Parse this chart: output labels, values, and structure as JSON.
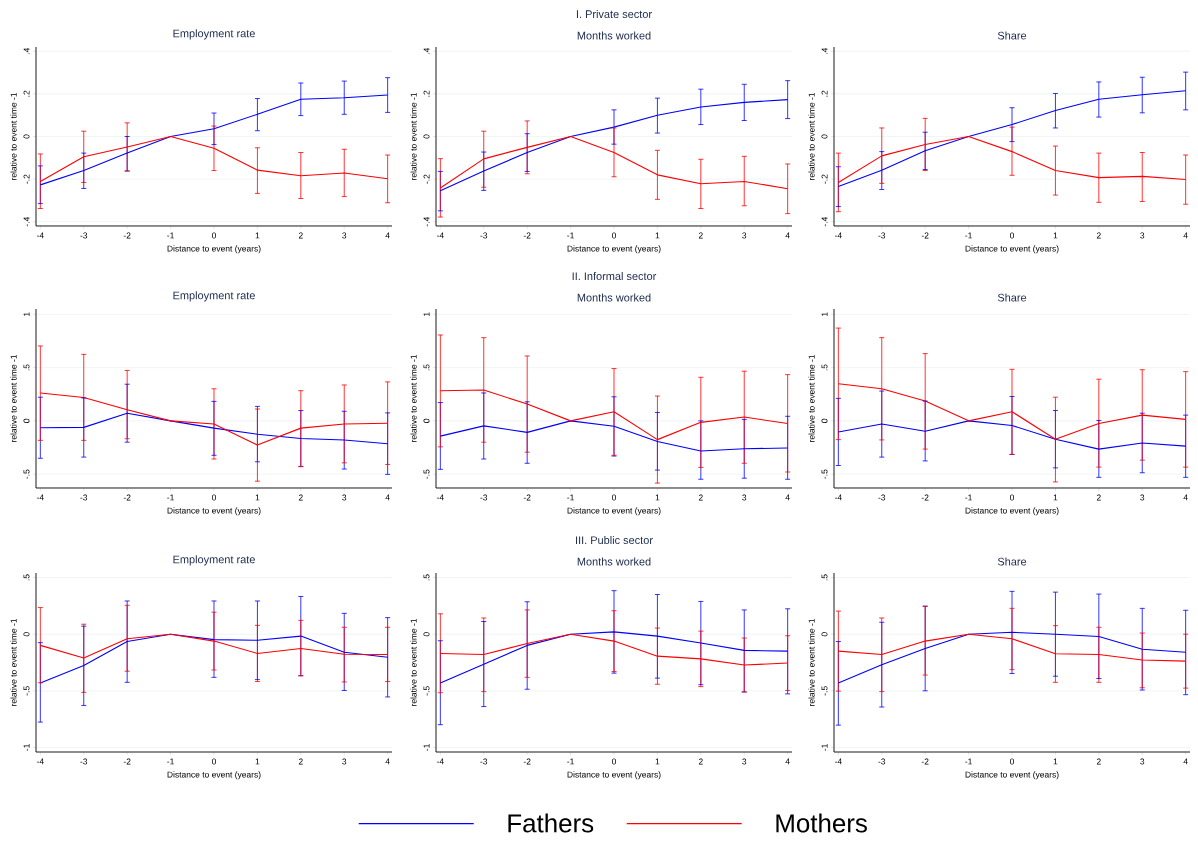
{
  "chart_data": [
    {
      "type": "line",
      "title": "Employment rate",
      "xlabel": "Distance to event (years)",
      "ylabel": "relative to event time -1",
      "x": [
        -4,
        -3,
        -2,
        -1,
        0,
        1,
        2,
        3,
        4
      ],
      "xlim": [
        -4.1,
        4.1
      ],
      "xticks": [
        -4,
        -3,
        -2,
        -1,
        0,
        1,
        2,
        3,
        4
      ],
      "ylim": [
        -0.42,
        0.42
      ],
      "yticks": [
        {
          "value": -0.4,
          "label": "-.4"
        },
        {
          "value": -0.2,
          "label": "-.2"
        },
        {
          "value": 0,
          "label": "0"
        },
        {
          "value": 0.2,
          "label": ".2"
        },
        {
          "value": 0.4,
          "label": ".4"
        }
      ],
      "grid": "y",
      "series": [
        {
          "color": "#0000ff",
          "values": [
            -0.227,
            -0.16,
            -0.078,
            0,
            0.036,
            0.104,
            0.175,
            0.182,
            0.195
          ],
          "errors": [
            [
              -0.315,
              -0.138
            ],
            [
              -0.244,
              -0.078
            ],
            [
              -0.162,
              0
            ],
            null,
            [
              -0.038,
              0.11
            ],
            [
              0.027,
              0.178
            ],
            [
              0.098,
              0.251
            ],
            [
              0.104,
              0.26
            ],
            [
              0.113,
              0.276
            ]
          ]
        },
        {
          "color": "#ff0000",
          "values": [
            -0.211,
            -0.095,
            -0.049,
            0,
            -0.055,
            -0.158,
            -0.184,
            -0.171,
            -0.198
          ],
          "errors": [
            [
              -0.338,
              -0.082
            ],
            [
              -0.216,
              0.025
            ],
            [
              -0.162,
              0.064
            ],
            null,
            [
              -0.16,
              0.049
            ],
            [
              -0.267,
              -0.053
            ],
            [
              -0.291,
              -0.075
            ],
            [
              -0.282,
              -0.06
            ],
            [
              -0.311,
              -0.087
            ]
          ]
        }
      ]
    },
    {
      "type": "line",
      "title": "Months worked",
      "annotations": [
        "I. Private sector"
      ],
      "xlabel": "Distance to event (years)",
      "ylabel": "relative to event time -1",
      "x": [
        -4,
        -3,
        -2,
        -1,
        0,
        1,
        2,
        3,
        4
      ],
      "xlim": [
        -4.1,
        4.1
      ],
      "xticks": [
        -4,
        -3,
        -2,
        -1,
        0,
        1,
        2,
        3,
        4
      ],
      "ylim": [
        -0.42,
        0.42
      ],
      "yticks": [
        {
          "value": -0.4,
          "label": "-.4"
        },
        {
          "value": -0.2,
          "label": "-.2"
        },
        {
          "value": 0,
          "label": "0"
        },
        {
          "value": 0.2,
          "label": ".2"
        },
        {
          "value": 0.4,
          "label": ".4"
        }
      ],
      "grid": "y",
      "series": [
        {
          "color": "#0000ff",
          "values": [
            -0.255,
            -0.162,
            -0.075,
            0,
            0.044,
            0.1,
            0.138,
            0.16,
            0.173
          ],
          "errors": [
            [
              -0.349,
              -0.164
            ],
            [
              -0.253,
              -0.073
            ],
            [
              -0.164,
              0.013
            ],
            null,
            [
              -0.036,
              0.125
            ],
            [
              0.016,
              0.18
            ],
            [
              0.056,
              0.222
            ],
            [
              0.075,
              0.245
            ],
            [
              0.084,
              0.262
            ]
          ]
        },
        {
          "color": "#ff0000",
          "values": [
            -0.242,
            -0.105,
            -0.051,
            0,
            -0.075,
            -0.18,
            -0.222,
            -0.211,
            -0.245
          ],
          "errors": [
            [
              -0.378,
              -0.104
            ],
            [
              -0.238,
              0.025
            ],
            [
              -0.175,
              0.073
            ],
            null,
            [
              -0.189,
              0.04
            ],
            [
              -0.295,
              -0.065
            ],
            [
              -0.338,
              -0.107
            ],
            [
              -0.325,
              -0.093
            ],
            [
              -0.362,
              -0.129
            ]
          ]
        }
      ]
    },
    {
      "type": "line",
      "title": "Share",
      "xlabel": "Distance to event (years)",
      "ylabel": "relative to event time -1",
      "x": [
        -4,
        -3,
        -2,
        -1,
        0,
        1,
        2,
        3,
        4
      ],
      "xlim": [
        -4.1,
        4.1
      ],
      "xticks": [
        -4,
        -3,
        -2,
        -1,
        0,
        1,
        2,
        3,
        4
      ],
      "ylim": [
        -0.42,
        0.42
      ],
      "yticks": [
        {
          "value": -0.4,
          "label": "-.4"
        },
        {
          "value": -0.2,
          "label": "-.2"
        },
        {
          "value": 0,
          "label": "0"
        },
        {
          "value": 0.2,
          "label": ".2"
        },
        {
          "value": 0.4,
          "label": ".4"
        }
      ],
      "grid": "y",
      "series": [
        {
          "color": "#0000ff",
          "values": [
            -0.235,
            -0.158,
            -0.067,
            0,
            0.056,
            0.122,
            0.175,
            0.196,
            0.215
          ],
          "errors": [
            [
              -0.329,
              -0.142
            ],
            [
              -0.249,
              -0.071
            ],
            [
              -0.155,
              0.02
            ],
            null,
            [
              -0.024,
              0.135
            ],
            [
              0.04,
              0.202
            ],
            [
              0.091,
              0.256
            ],
            [
              0.111,
              0.278
            ],
            [
              0.125,
              0.302
            ]
          ]
        },
        {
          "color": "#ff0000",
          "values": [
            -0.216,
            -0.091,
            -0.038,
            0,
            -0.071,
            -0.16,
            -0.193,
            -0.187,
            -0.202
          ],
          "errors": [
            [
              -0.353,
              -0.078
            ],
            [
              -0.22,
              0.04
            ],
            [
              -0.16,
              0.085
            ],
            null,
            [
              -0.182,
              0.044
            ],
            [
              -0.275,
              -0.045
            ],
            [
              -0.309,
              -0.078
            ],
            [
              -0.305,
              -0.075
            ],
            [
              -0.318,
              -0.087
            ]
          ]
        }
      ]
    },
    {
      "type": "line",
      "title": "Employment rate",
      "xlabel": "Distance to event (years)",
      "ylabel": "relative to event time -1",
      "x": [
        -4,
        -3,
        -2,
        -1,
        0,
        1,
        2,
        3,
        4
      ],
      "xlim": [
        -4.1,
        4.1
      ],
      "xticks": [
        -4,
        -3,
        -2,
        -1,
        0,
        1,
        2,
        3,
        4
      ],
      "ylim": [
        -0.63,
        1.05
      ],
      "yticks": [
        {
          "value": -0.5,
          "label": "-.5"
        },
        {
          "value": 0,
          "label": "0"
        },
        {
          "value": 0.5,
          "label": ".5"
        },
        {
          "value": 1,
          "label": "1"
        }
      ],
      "grid": "y",
      "series": [
        {
          "color": "#0000ff",
          "values": [
            -0.065,
            -0.061,
            0.072,
            0,
            -0.068,
            -0.125,
            -0.165,
            -0.179,
            -0.215
          ],
          "errors": [
            [
              -0.351,
              0.222
            ],
            [
              -0.34,
              0.215
            ],
            [
              -0.2,
              0.344
            ],
            null,
            [
              -0.323,
              0.183
            ],
            [
              -0.384,
              0.136
            ],
            [
              -0.43,
              0.097
            ],
            [
              -0.452,
              0.09
            ],
            [
              -0.502,
              0.075
            ]
          ]
        },
        {
          "color": "#ff0000",
          "values": [
            0.262,
            0.219,
            0.104,
            0,
            -0.029,
            -0.226,
            -0.068,
            -0.029,
            -0.022
          ],
          "errors": [
            [
              -0.183,
              0.703
            ],
            [
              -0.183,
              0.624
            ],
            [
              -0.168,
              0.473
            ],
            null,
            [
              -0.358,
              0.301
            ],
            [
              -0.566,
              0.111
            ],
            [
              -0.427,
              0.283
            ],
            [
              -0.394,
              0.337
            ],
            [
              -0.409,
              0.366
            ]
          ]
        }
      ]
    },
    {
      "type": "line",
      "title": "Months worked",
      "annotations": [
        "II. Informal sector"
      ],
      "xlabel": "Distance to event (years)",
      "ylabel": "relative to event time -1",
      "x": [
        -4,
        -3,
        -2,
        -1,
        0,
        1,
        2,
        3,
        4
      ],
      "xlim": [
        -4.1,
        4.1
      ],
      "xticks": [
        -4,
        -3,
        -2,
        -1,
        0,
        1,
        2,
        3,
        4
      ],
      "ylim": [
        -0.63,
        1.05
      ],
      "yticks": [
        {
          "value": -0.5,
          "label": "-.5"
        },
        {
          "value": 0,
          "label": "0"
        },
        {
          "value": 0.5,
          "label": ".5"
        },
        {
          "value": 1,
          "label": "1"
        }
      ],
      "grid": "y",
      "series": [
        {
          "color": "#0000ff",
          "values": [
            -0.143,
            -0.047,
            -0.108,
            0,
            -0.05,
            -0.194,
            -0.283,
            -0.262,
            -0.254
          ],
          "errors": [
            [
              -0.455,
              0.172
            ],
            [
              -0.358,
              0.262
            ],
            [
              -0.398,
              0.179
            ],
            null,
            [
              -0.33,
              0.226
            ],
            [
              -0.462,
              0.079
            ],
            [
              -0.548,
              0.0
            ],
            [
              -0.538,
              0.014
            ],
            [
              -0.548,
              0.043
            ]
          ]
        },
        {
          "color": "#ff0000",
          "values": [
            0.283,
            0.29,
            0.158,
            0,
            0.086,
            -0.176,
            -0.014,
            0.036,
            -0.025
          ],
          "errors": [
            [
              -0.244,
              0.806
            ],
            [
              -0.2,
              0.781
            ],
            [
              -0.294,
              0.609
            ],
            null,
            [
              -0.323,
              0.491
            ],
            [
              -0.584,
              0.233
            ],
            [
              -0.437,
              0.409
            ],
            [
              -0.398,
              0.466
            ],
            [
              -0.48,
              0.434
            ]
          ]
        }
      ]
    },
    {
      "type": "line",
      "title": "Share",
      "xlabel": "Distance to event (years)",
      "ylabel": "relative to event time -1",
      "x": [
        -4,
        -3,
        -2,
        -1,
        0,
        1,
        2,
        3,
        4
      ],
      "xlim": [
        -4.1,
        4.1
      ],
      "xticks": [
        -4,
        -3,
        -2,
        -1,
        0,
        1,
        2,
        3,
        4
      ],
      "ylim": [
        -0.63,
        1.05
      ],
      "yticks": [
        {
          "value": -0.5,
          "label": "-.5"
        },
        {
          "value": 0,
          "label": "0"
        },
        {
          "value": 0.5,
          "label": ".5"
        },
        {
          "value": 1,
          "label": "1"
        }
      ],
      "grid": "y",
      "series": [
        {
          "color": "#0000ff",
          "values": [
            -0.104,
            -0.029,
            -0.097,
            0,
            -0.043,
            -0.172,
            -0.265,
            -0.208,
            -0.237
          ],
          "errors": [
            [
              -0.419,
              0.211
            ],
            [
              -0.34,
              0.28
            ],
            [
              -0.376,
              0.186
            ],
            null,
            [
              -0.315,
              0.229
            ],
            [
              -0.441,
              0.097
            ],
            [
              -0.53,
              0.004
            ],
            [
              -0.487,
              0.072
            ],
            [
              -0.53,
              0.054
            ]
          ]
        },
        {
          "color": "#ff0000",
          "values": [
            0.348,
            0.301,
            0.186,
            0,
            0.086,
            -0.172,
            -0.025,
            0.054,
            0.014
          ],
          "errors": [
            [
              -0.176,
              0.871
            ],
            [
              -0.179,
              0.781
            ],
            [
              -0.265,
              0.631
            ],
            null,
            [
              -0.315,
              0.484
            ],
            [
              -0.573,
              0.222
            ],
            [
              -0.434,
              0.391
            ],
            [
              -0.369,
              0.48
            ],
            [
              -0.434,
              0.462
            ]
          ]
        }
      ]
    },
    {
      "type": "line",
      "title": "Employment rate",
      "xlabel": "Distance to event (years)",
      "ylabel": "relative to event time -1",
      "x": [
        -4,
        -3,
        -2,
        -1,
        0,
        1,
        2,
        3,
        4
      ],
      "xlim": [
        -4.1,
        4.1
      ],
      "xticks": [
        -4,
        -3,
        -2,
        -1,
        0,
        1,
        2,
        3,
        4
      ],
      "ylim": [
        -1.04,
        0.54
      ],
      "yticks": [
        {
          "value": -1,
          "label": "-1"
        },
        {
          "value": -0.5,
          "label": "-.5"
        },
        {
          "value": 0,
          "label": "0"
        },
        {
          "value": 0.5,
          "label": ".5"
        }
      ],
      "grid": "y",
      "series": [
        {
          "color": "#0000ff",
          "values": [
            -0.432,
            -0.276,
            -0.065,
            0,
            -0.048,
            -0.054,
            -0.017,
            -0.16,
            -0.204
          ],
          "errors": [
            [
              -0.776,
              -0.075
            ],
            [
              -0.629,
              0.071
            ],
            [
              -0.425,
              0.293
            ],
            null,
            [
              -0.381,
              0.293
            ],
            [
              -0.401,
              0.293
            ],
            [
              -0.367,
              0.333
            ],
            [
              -0.497,
              0.184
            ],
            [
              -0.554,
              0.146
            ]
          ]
        },
        {
          "color": "#ff0000",
          "values": [
            -0.099,
            -0.211,
            -0.041,
            0,
            -0.061,
            -0.17,
            -0.126,
            -0.177,
            -0.18
          ],
          "errors": [
            [
              -0.429,
              0.235
            ],
            [
              -0.514,
              0.088
            ],
            [
              -0.327,
              0.255
            ],
            null,
            [
              -0.316,
              0.194
            ],
            [
              -0.418,
              0.078
            ],
            [
              -0.367,
              0.122
            ],
            [
              -0.422,
              0.061
            ],
            [
              -0.418,
              0.061
            ]
          ]
        }
      ]
    },
    {
      "type": "line",
      "title": "Months worked",
      "annotations": [
        "III. Public sector"
      ],
      "legend": "bottom",
      "xlabel": "Distance to event (years)",
      "ylabel": "relative to event time -1",
      "x": [
        -4,
        -3,
        -2,
        -1,
        0,
        1,
        2,
        3,
        4
      ],
      "xlim": [
        -4.1,
        4.1
      ],
      "xticks": [
        -4,
        -3,
        -2,
        -1,
        0,
        1,
        2,
        3,
        4
      ],
      "ylim": [
        -1.04,
        0.54
      ],
      "yticks": [
        {
          "value": -1,
          "label": "-1"
        },
        {
          "value": -0.5,
          "label": "-.5"
        },
        {
          "value": 0,
          "label": "0"
        },
        {
          "value": 0.5,
          "label": ".5"
        }
      ],
      "grid": "y",
      "series": [
        {
          "name": "Fathers",
          "color": "#0000ff",
          "values": [
            -0.432,
            -0.265,
            -0.099,
            0,
            0.02,
            -0.017,
            -0.078,
            -0.143,
            -0.15
          ],
          "errors": [
            [
              -0.799,
              -0.058
            ],
            [
              -0.639,
              0.112
            ],
            [
              -0.486,
              0.286
            ],
            null,
            [
              -0.344,
              0.384
            ],
            [
              -0.388,
              0.35
            ],
            [
              -0.446,
              0.289
            ],
            [
              -0.51,
              0.214
            ],
            [
              -0.527,
              0.224
            ]
          ]
        },
        {
          "name": "Mothers",
          "color": "#ff0000",
          "values": [
            -0.17,
            -0.18,
            -0.082,
            0,
            -0.061,
            -0.194,
            -0.218,
            -0.272,
            -0.255
          ],
          "errors": [
            [
              -0.517,
              0.18
            ],
            [
              -0.507,
              0.143
            ],
            [
              -0.381,
              0.214
            ],
            null,
            [
              -0.33,
              0.207
            ],
            [
              -0.442,
              0.054
            ],
            [
              -0.463,
              0.027
            ],
            [
              -0.51,
              -0.034
            ],
            [
              -0.497,
              -0.014
            ]
          ]
        }
      ]
    },
    {
      "type": "line",
      "title": "Share",
      "xlabel": "Distance to event (years)",
      "ylabel": "relative to event time -1",
      "x": [
        -4,
        -3,
        -2,
        -1,
        0,
        1,
        2,
        3,
        4
      ],
      "xlim": [
        -4.1,
        4.1
      ],
      "xticks": [
        -4,
        -3,
        -2,
        -1,
        0,
        1,
        2,
        3,
        4
      ],
      "ylim": [
        -1.04,
        0.54
      ],
      "yticks": [
        {
          "value": -1,
          "label": "-1"
        },
        {
          "value": -0.5,
          "label": "-.5"
        },
        {
          "value": 0,
          "label": "0"
        },
        {
          "value": 0.5,
          "label": ".5"
        }
      ],
      "grid": "y",
      "series": [
        {
          "color": "#0000ff",
          "values": [
            -0.432,
            -0.269,
            -0.126,
            0,
            0.017,
            0,
            -0.02,
            -0.133,
            -0.16
          ],
          "errors": [
            [
              -0.803,
              -0.065
            ],
            [
              -0.643,
              0.105
            ],
            [
              -0.5,
              0.248
            ],
            null,
            [
              -0.347,
              0.378
            ],
            [
              -0.371,
              0.371
            ],
            [
              -0.391,
              0.354
            ],
            [
              -0.493,
              0.228
            ],
            [
              -0.534,
              0.211
            ]
          ]
        },
        {
          "color": "#ff0000",
          "values": [
            -0.15,
            -0.18,
            -0.061,
            0,
            -0.041,
            -0.173,
            -0.18,
            -0.228,
            -0.238
          ],
          "errors": [
            [
              -0.503,
              0.204
            ],
            [
              -0.507,
              0.143
            ],
            [
              -0.361,
              0.245
            ],
            null,
            [
              -0.313,
              0.228
            ],
            [
              -0.425,
              0.075
            ],
            [
              -0.425,
              0.061
            ],
            [
              -0.473,
              0.01
            ],
            [
              -0.476,
              0
            ]
          ]
        }
      ]
    }
  ]
}
